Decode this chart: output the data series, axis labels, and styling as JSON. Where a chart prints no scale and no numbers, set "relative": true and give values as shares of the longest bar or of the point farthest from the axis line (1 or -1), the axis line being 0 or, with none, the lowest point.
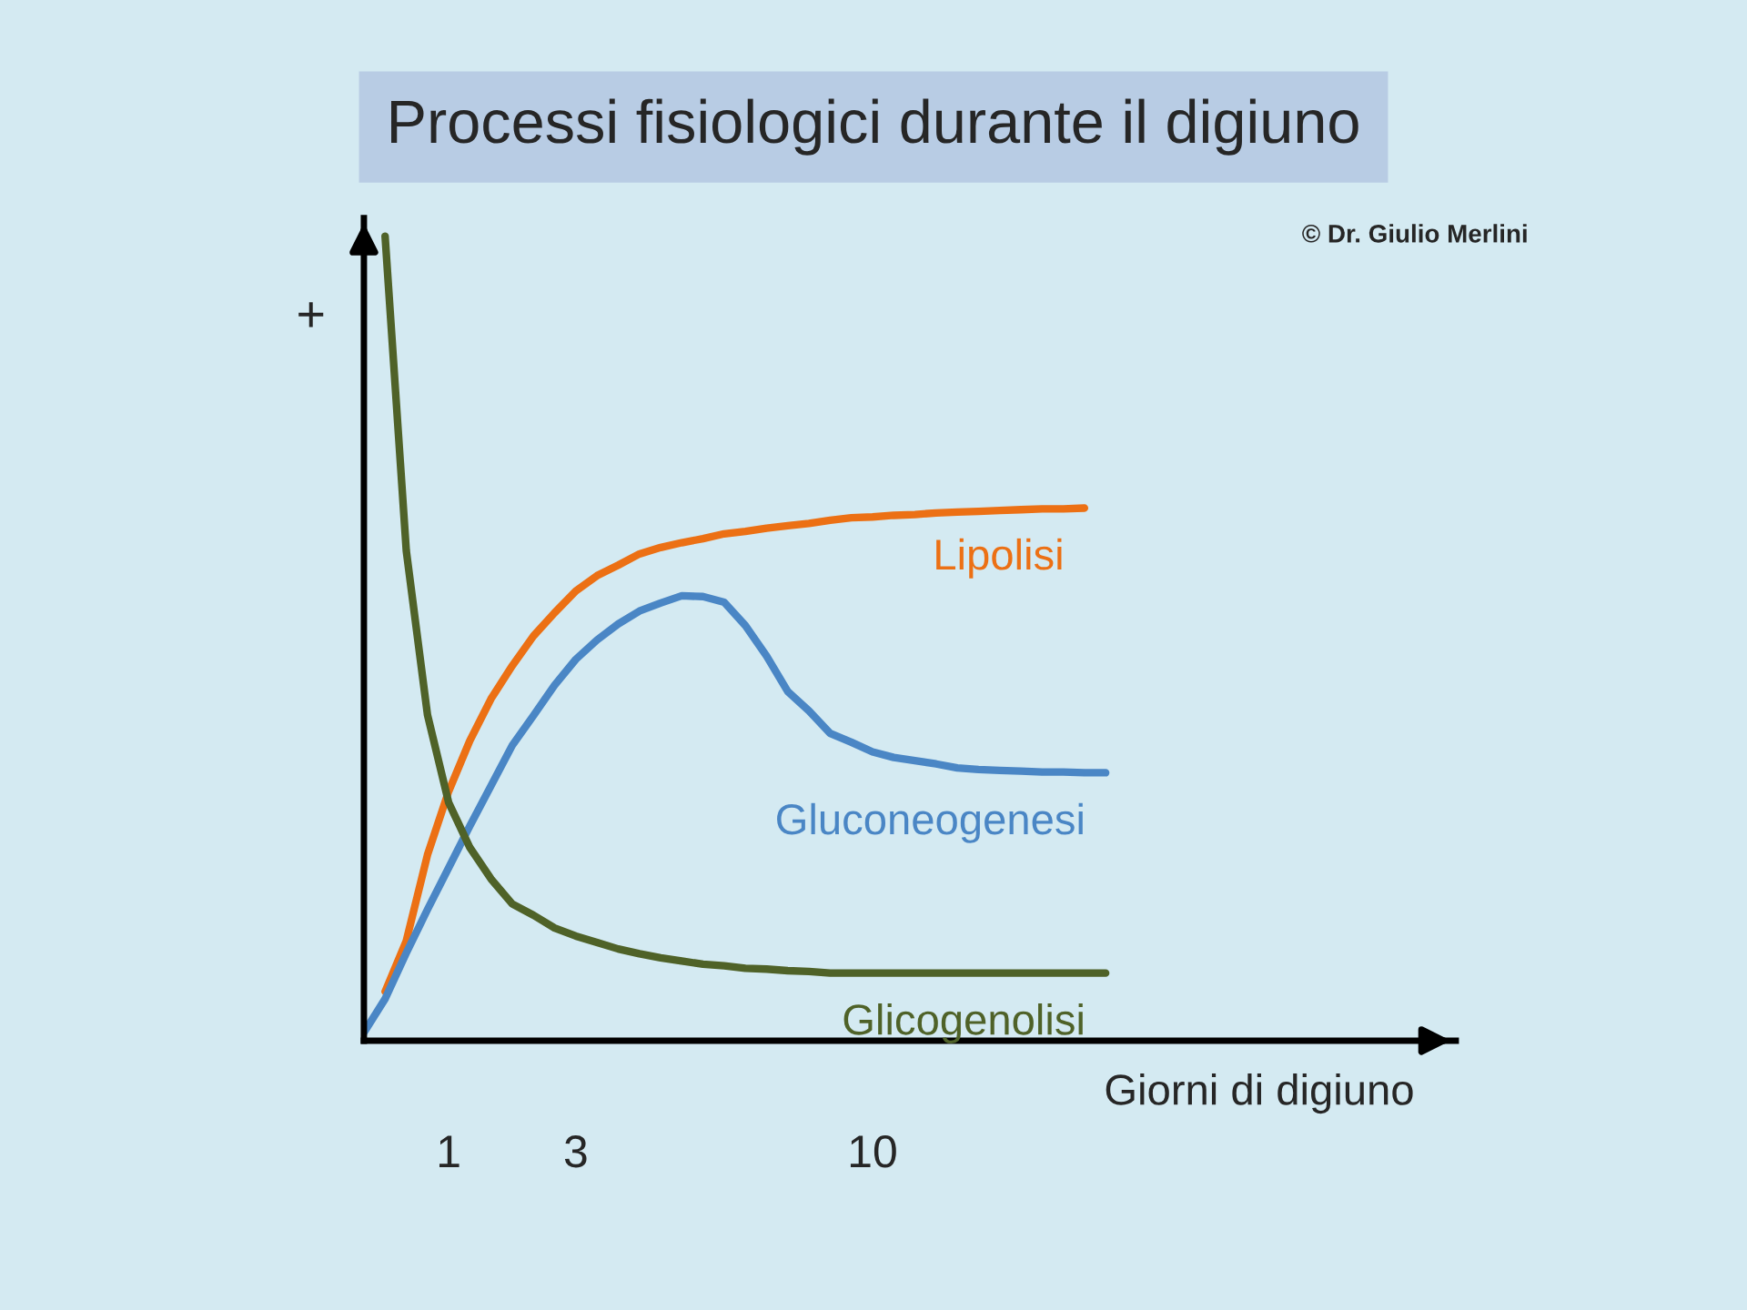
{
  "chart_data": {
    "type": "line",
    "title": "Processi fisiologici durante il digiuno",
    "xlabel": "Giorni di digiuno",
    "relative": true,
    "categories": [
      null,
      null,
      null,
      null,
      "1",
      null,
      null,
      null,
      null,
      null,
      "3",
      null,
      null,
      null,
      null,
      null,
      null,
      null,
      null,
      null,
      null,
      null,
      null,
      null,
      "10",
      null,
      null,
      null,
      null,
      null,
      null,
      null,
      null,
      null,
      null,
      null
    ],
    "annotations": [
      "+",
      "© Dr. Giulio Merlini"
    ],
    "legend": false,
    "grid": false,
    "marker": "none",
    "line_style": "solid",
    "series": [
      {
        "name": "Lipolisi",
        "color": "#ec7014",
        "values": [
          null,
          0.061,
          0.124,
          0.231,
          0.31,
          0.373,
          0.425,
          0.466,
          0.503,
          0.532,
          0.559,
          0.578,
          0.591,
          0.605,
          0.613,
          0.619,
          0.624,
          0.63,
          0.633,
          0.637,
          0.64,
          0.643,
          0.647,
          0.65,
          0.651,
          0.653,
          0.654,
          0.656,
          0.657,
          0.658,
          0.659,
          0.66,
          0.661,
          0.661,
          0.662,
          null
        ]
      },
      {
        "name": "Gluconeogenesi",
        "color": "#4a86c5",
        "values": [
          0.01,
          0.052,
          0.109,
          0.163,
          0.215,
          0.267,
          0.317,
          0.367,
          0.404,
          0.442,
          0.474,
          0.498,
          0.518,
          0.534,
          0.544,
          0.553,
          0.552,
          0.545,
          0.516,
          0.478,
          0.434,
          0.41,
          0.382,
          0.371,
          0.359,
          0.352,
          0.348,
          0.344,
          0.339,
          0.337,
          0.336,
          0.335,
          0.334,
          0.334,
          0.333,
          0.333
        ]
      },
      {
        "name": "Glicogenolisi",
        "color": "#4f6228",
        "values": [
          null,
          1.0,
          0.609,
          0.405,
          0.296,
          0.24,
          0.201,
          0.17,
          0.156,
          0.14,
          0.13,
          0.122,
          0.114,
          0.108,
          0.103,
          0.099,
          0.095,
          0.093,
          0.09,
          0.089,
          0.087,
          0.086,
          0.084,
          0.084,
          0.084,
          0.084,
          0.084,
          0.084,
          0.084,
          0.084,
          0.084,
          0.084,
          0.084,
          0.084,
          0.084,
          0.084
        ]
      }
    ]
  }
}
